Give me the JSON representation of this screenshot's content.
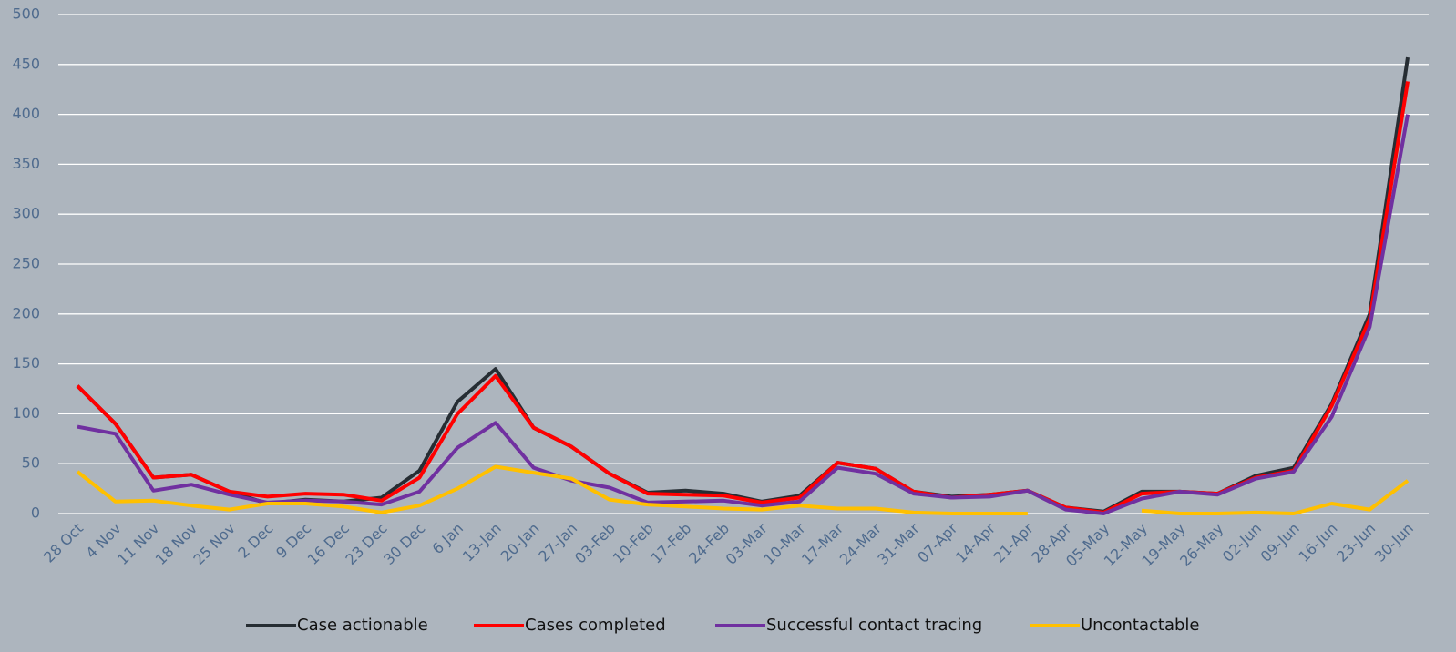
{
  "chart_data": {
    "type": "line",
    "categories": [
      "28 Oct",
      "4 Nov",
      "11 Nov",
      "18 Nov",
      "25 Nov",
      "2 Dec",
      "9 Dec",
      "16 Dec",
      "23 Dec",
      "30 Dec",
      "6 Jan",
      "13-Jan",
      "20-Jan",
      "27-Jan",
      "03-Feb",
      "10-Feb",
      "17-Feb",
      "24-Feb",
      "03-Mar",
      "10-Mar",
      "17-Mar",
      "24-Mar",
      "31-Mar",
      "07-Apr",
      "14-Apr",
      "21-Apr",
      "28-Apr",
      "05-May",
      "12-May",
      "19-May",
      "26-May",
      "02-Jun",
      "09-Jun",
      "16-Jun",
      "23-Jun",
      "30-Jun"
    ],
    "series": [
      {
        "name": "Case actionable",
        "color": "#262d33",
        "values": [
          128,
          90,
          36,
          39,
          22,
          10,
          14,
          12,
          16,
          43,
          112,
          145,
          86,
          67,
          40,
          21,
          23,
          20,
          12,
          18,
          51,
          45,
          22,
          17,
          19,
          23,
          6,
          2,
          22,
          22,
          20,
          38,
          46,
          110,
          200,
          457
        ]
      },
      {
        "name": "Cases completed",
        "color": "#ff0000",
        "values": [
          128,
          90,
          36,
          39,
          22,
          17,
          20,
          19,
          13,
          36,
          100,
          138,
          86,
          67,
          40,
          20,
          19,
          18,
          11,
          16,
          51,
          45,
          22,
          16,
          19,
          23,
          6,
          1,
          20,
          22,
          20,
          36,
          43,
          108,
          195,
          433
        ]
      },
      {
        "name": "Successful contact tracing",
        "color": "#7030a0",
        "values": [
          87,
          80,
          23,
          29,
          19,
          11,
          13,
          12,
          9,
          22,
          66,
          91,
          46,
          33,
          26,
          11,
          12,
          13,
          8,
          12,
          46,
          40,
          20,
          16,
          17,
          23,
          4,
          0,
          15,
          22,
          19,
          35,
          42,
          97,
          187,
          400
        ]
      },
      {
        "name": "Uncontactable",
        "color": "#ffc000",
        "values": [
          42,
          12,
          13,
          8,
          4,
          10,
          10,
          7,
          1,
          8,
          25,
          47,
          41,
          35,
          14,
          9,
          7,
          5,
          4,
          8,
          5,
          5,
          1,
          0,
          0,
          0,
          null,
          null,
          3,
          0,
          0,
          1,
          0,
          10,
          4,
          33
        ]
      }
    ],
    "ylim": [
      0,
      500
    ],
    "yticks": [
      0,
      50,
      100,
      150,
      200,
      250,
      300,
      350,
      400,
      450,
      500
    ],
    "grid": true,
    "legend": "bottom"
  }
}
